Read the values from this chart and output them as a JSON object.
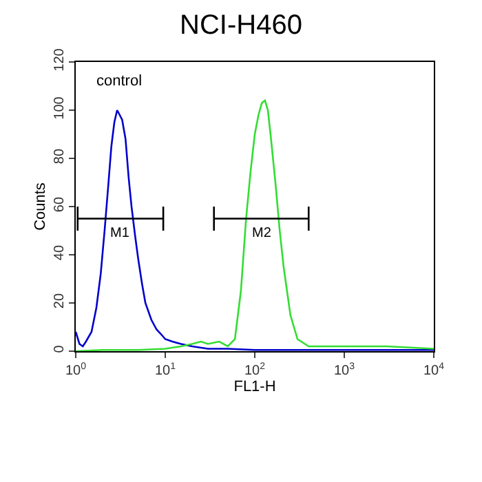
{
  "chart_data": {
    "type": "line",
    "title": "NCI-H460",
    "xlabel": "FL1-H",
    "ylabel": "Counts",
    "log": "x",
    "marker": "none",
    "line_style": "solid",
    "xlim": [
      1,
      10000
    ],
    "xticks": [
      {
        "value": 1,
        "label": "10$^{0}$"
      },
      {
        "value": 10,
        "label": "10$^{1}$"
      },
      {
        "value": 100,
        "label": "10$^{2}$"
      },
      {
        "value": 1000,
        "label": "10$^{3}$"
      },
      {
        "value": 10000,
        "label": "10$^{4}$"
      }
    ],
    "ylim": [
      0,
      120
    ],
    "yticks": [
      0,
      20,
      40,
      60,
      80,
      100,
      120
    ],
    "annotations": [
      "control",
      "M1",
      "M2"
    ],
    "series": [
      {
        "color": "#0000cc",
        "x": [
          1.0,
          1.1,
          1.2,
          1.3,
          1.5,
          1.7,
          1.9,
          2.1,
          2.3,
          2.5,
          2.7,
          2.9,
          3.1,
          3.3,
          3.6,
          3.9,
          4.2,
          4.6,
          5,
          5.5,
          6,
          7,
          8,
          9,
          10,
          12,
          15,
          20,
          30,
          50,
          100,
          300,
          1000,
          10000
        ],
        "values": [
          8,
          3,
          2,
          4,
          8,
          18,
          32,
          50,
          68,
          85,
          95,
          100,
          98,
          96,
          88,
          72,
          60,
          48,
          38,
          28,
          20,
          13,
          9,
          7,
          5,
          4,
          3,
          2,
          1,
          1,
          0.5,
          0.5,
          0.5,
          0.5
        ]
      },
      {
        "color": "#33dd33",
        "x": [
          1,
          2,
          5,
          10,
          15,
          20,
          25,
          30,
          40,
          50,
          60,
          70,
          80,
          90,
          100,
          110,
          120,
          130,
          140,
          150,
          170,
          190,
          210,
          250,
          300,
          400,
          1000,
          3000,
          10000
        ],
        "values": [
          0,
          0.5,
          0.5,
          1,
          2,
          3,
          4,
          3,
          4,
          2,
          5,
          25,
          55,
          75,
          90,
          98,
          103,
          104,
          100,
          90,
          70,
          50,
          35,
          15,
          5,
          2,
          2,
          2,
          1
        ]
      },
      {
        "color": "#000000",
        "x": [
          1.05,
          1.05,
          1.05,
          9.5,
          9.5,
          9.5
        ],
        "values": [
          50,
          60,
          55,
          55,
          60,
          50
        ]
      },
      {
        "color": "#000000",
        "x": [
          35,
          35,
          35,
          400,
          400,
          400
        ],
        "values": [
          50,
          60,
          55,
          55,
          60,
          50
        ]
      }
    ]
  }
}
